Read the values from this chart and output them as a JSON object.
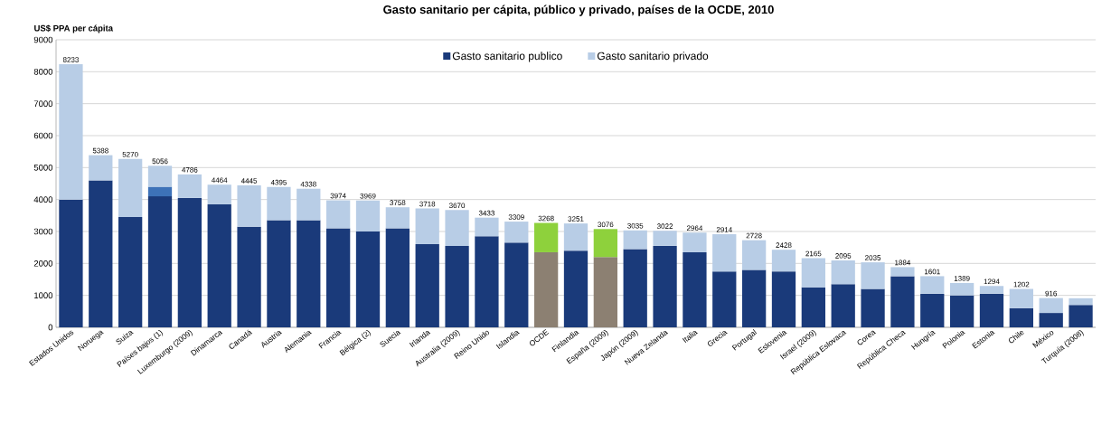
{
  "chart_data": {
    "type": "bar",
    "stacked": true,
    "title": "Gasto sanitario per cápita, público y privado, países de la OCDE, 2010",
    "ylabel": "US$ PPA per cápita",
    "categories": [
      "Estados Unidos",
      "Noruega",
      "Suiza",
      "Países bajos (1)",
      "Luxemburgo (2009)",
      "Dinamarca",
      "Canadá",
      "Austria",
      "Alemania",
      "Francia",
      "Bélgica (2)",
      "Suecia",
      "Irlanda",
      "Australia (2009)",
      "Reino Unido",
      "Islandia",
      "OCDE",
      "Finlandia",
      "España (2009)",
      "Japón (2009)",
      "Nueva Zelanda",
      "Italia",
      "Grecia",
      "Portugal",
      "Eslovenia",
      "Israel (2009)",
      "República Eslovaca",
      "Corea",
      "República Checa",
      "Hungría",
      "Polonia",
      "Estonia",
      "Chile",
      "México",
      "Turquía (2008)"
    ],
    "series": [
      {
        "name": "Gasto sanitario publico",
        "color": "#1a3a7a",
        "colors": [
          "#1a3a7a",
          "#1a3a7a",
          "#1a3a7a",
          "#1a3a7a",
          "#1a3a7a",
          "#1a3a7a",
          "#1a3a7a",
          "#1a3a7a",
          "#1a3a7a",
          "#1a3a7a",
          "#1a3a7a",
          "#1a3a7a",
          "#1a3a7a",
          "#1a3a7a",
          "#1a3a7a",
          "#1a3a7a",
          "#8c8072",
          "#1a3a7a",
          "#8c8072",
          "#1a3a7a",
          "#1a3a7a",
          "#1a3a7a",
          "#1a3a7a",
          "#1a3a7a",
          "#1a3a7a",
          "#1a3a7a",
          "#1a3a7a",
          "#1a3a7a",
          "#1a3a7a",
          "#1a3a7a",
          "#1a3a7a",
          "#1a3a7a",
          "#1a3a7a",
          "#1a3a7a",
          "#1a3a7a"
        ],
        "values": [
          4000,
          4600,
          3450,
          4100,
          4050,
          3850,
          3150,
          3350,
          3350,
          3100,
          3000,
          3100,
          2600,
          2550,
          2850,
          2650,
          2350,
          2400,
          2200,
          2450,
          2550,
          2350,
          1750,
          1800,
          1750,
          1250,
          1350,
          1200,
          1600,
          1050,
          1000,
          1050,
          600,
          450,
          700
        ]
      },
      {
        "color": "#3d72b8",
        "values": [
          null,
          null,
          null,
          300,
          null,
          null,
          null,
          null,
          null,
          null,
          null,
          null,
          null,
          null,
          null,
          null,
          null,
          null,
          null,
          null,
          null,
          null,
          null,
          null,
          null,
          null,
          null,
          null,
          null,
          null,
          null,
          null,
          null,
          null,
          null
        ]
      },
      {
        "name": "Gasto sanitario privado",
        "color": "#b8cde6",
        "colors": [
          "#b8cde6",
          "#b8cde6",
          "#b8cde6",
          "#b8cde6",
          "#b8cde6",
          "#b8cde6",
          "#b8cde6",
          "#b8cde6",
          "#b8cde6",
          "#b8cde6",
          "#b8cde6",
          "#b8cde6",
          "#b8cde6",
          "#b8cde6",
          "#b8cde6",
          "#b8cde6",
          "#8ed13c",
          "#b8cde6",
          "#8ed13c",
          "#b8cde6",
          "#b8cde6",
          "#b8cde6",
          "#b8cde6",
          "#b8cde6",
          "#b8cde6",
          "#b8cde6",
          "#b8cde6",
          "#b8cde6",
          "#b8cde6",
          "#b8cde6",
          "#b8cde6",
          "#b8cde6",
          "#b8cde6",
          "#b8cde6",
          "#b8cde6"
        ],
        "values": [
          4233,
          788,
          1820,
          656,
          736,
          614,
          1295,
          1045,
          988,
          874,
          969,
          658,
          1118,
          1120,
          583,
          659,
          918,
          851,
          876,
          585,
          472,
          614,
          1164,
          928,
          678,
          915,
          745,
          835,
          284,
          551,
          389,
          244,
          602,
          466,
          210
        ]
      }
    ],
    "totals": [
      "8233",
      "5388",
      "5270",
      "5056",
      "4786",
      "4464",
      "4445",
      "4395",
      "4338",
      "3974",
      "3969",
      "3758",
      "3718",
      "3670",
      "3433",
      "3309",
      "3268",
      "3251",
      "3076",
      "3035",
      "3022",
      "2964",
      "2914",
      "2728",
      "2428",
      "2165",
      "2095",
      "2035",
      "1884",
      "1601",
      "1389",
      "1294",
      "1202",
      "916",
      null
    ],
    "ylim": [
      0,
      9000
    ],
    "yticks": [
      0,
      1000,
      2000,
      3000,
      4000,
      5000,
      6000,
      7000,
      8000,
      9000
    ],
    "grid": "y",
    "legend": "top"
  }
}
